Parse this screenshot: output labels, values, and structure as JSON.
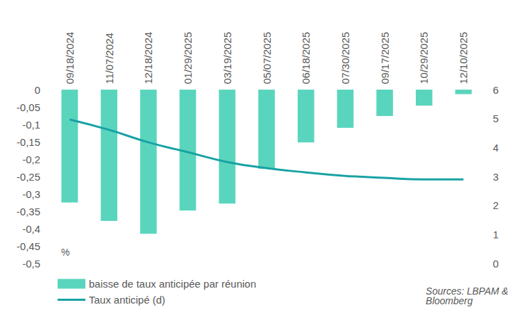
{
  "chart_data": {
    "type": "bar",
    "categories": [
      "09/18/2024",
      "11/07/2024",
      "12/18/2024",
      "01/29/2025",
      "03/19/2025",
      "05/07/2025",
      "06/18/2025",
      "07/30/2025",
      "09/17/2025",
      "10/29/2025",
      "12/10/2025"
    ],
    "series": [
      {
        "name": "baisse de taux anticipée par réunion",
        "type": "bar",
        "color": "#5ad5bd",
        "values": [
          -0.325,
          -0.378,
          -0.415,
          -0.348,
          -0.328,
          -0.228,
          -0.152,
          -0.11,
          -0.076,
          -0.046,
          -0.013
        ]
      },
      {
        "name": "Taux anticipé (d)",
        "type": "line",
        "axis": "y2",
        "color": "#17a2a4",
        "marker": "none",
        "line_style": "solid",
        "values": [
          4.97,
          4.61,
          4.18,
          3.84,
          3.5,
          3.29,
          3.14,
          3.02,
          2.95,
          2.9,
          2.9
        ]
      }
    ],
    "ylim": [
      -0.5,
      0
    ],
    "yticks": [
      {
        "value": -0.5,
        "label": "-0,5"
      },
      {
        "value": -0.45,
        "label": "-0,45"
      },
      {
        "value": -0.4,
        "label": "-0,4"
      },
      {
        "value": -0.35,
        "label": "-0,35"
      },
      {
        "value": -0.3,
        "label": "-0,3"
      },
      {
        "value": -0.25,
        "label": "-0,25"
      },
      {
        "value": -0.2,
        "label": "-0,2"
      },
      {
        "value": -0.15,
        "label": "-0,15"
      },
      {
        "value": -0.1,
        "label": "-0,1"
      },
      {
        "value": -0.05,
        "label": "-0,05"
      },
      0
    ],
    "y2lim": [
      0,
      6
    ],
    "y2ticks": [
      0,
      1,
      2,
      3,
      4,
      5,
      6
    ],
    "annotations": [
      "%",
      "Sources: LBPAM & Bloomberg"
    ],
    "grid": false,
    "legend": "bottom-left"
  }
}
